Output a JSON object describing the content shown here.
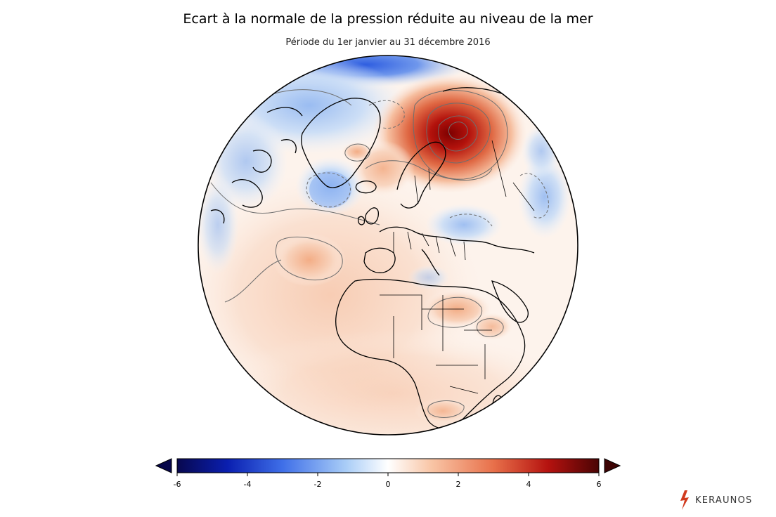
{
  "header": {
    "title": "Ecart à la normale de la pression réduite au niveau de la mer",
    "subtitle": "Période du 1er janvier au 31 décembre 2016"
  },
  "colorbar": {
    "ticks": [
      "-6",
      "-4",
      "-2",
      "0",
      "2",
      "4",
      "6"
    ],
    "min": -6,
    "max": 6,
    "colors": [
      "#08084f",
      "#0a1fb0",
      "#3f6fe8",
      "#a9cdf7",
      "#ffffff",
      "#f9c7a8",
      "#e8704a",
      "#b5120f",
      "#4a0404"
    ]
  },
  "logo": {
    "text": "KERAUNOS",
    "color": "#d13a1e"
  }
}
